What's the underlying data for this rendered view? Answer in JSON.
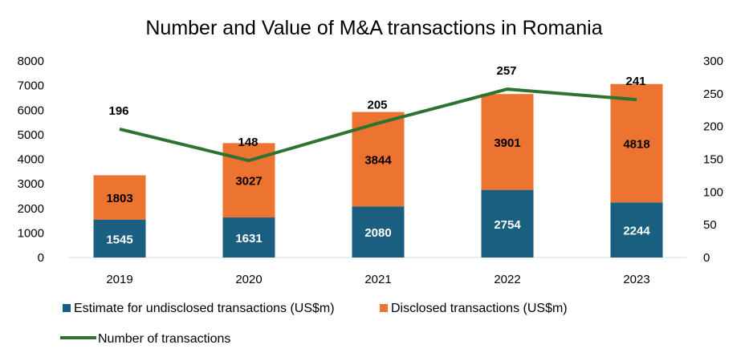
{
  "chart_data": {
    "type": "bar",
    "title": "Number and Value of M&A transactions in Romania",
    "categories": [
      "2019",
      "2020",
      "2021",
      "2022",
      "2023"
    ],
    "stacked": true,
    "series": [
      {
        "name": "Estimate for undisclosed transactions (US$m)",
        "kind": "bar",
        "axis": "left",
        "color": "#1a5e80",
        "label_color": "#ffffff",
        "values": [
          1545,
          1631,
          2080,
          2754,
          2244
        ]
      },
      {
        "name": "Disclosed transactions (US$m)",
        "kind": "bar",
        "axis": "left",
        "color": "#ed7331",
        "label_color": "#000000",
        "values": [
          1803,
          3027,
          3844,
          3901,
          4818
        ]
      },
      {
        "name": "Number of transactions",
        "kind": "line",
        "axis": "right",
        "color": "#2e7232",
        "label_color": "#000000",
        "values": [
          196,
          148,
          205,
          257,
          241
        ]
      }
    ],
    "y_left": {
      "min": 0,
      "max": 8000,
      "ticks": [
        "0",
        "1000",
        "2000",
        "3000",
        "4000",
        "5000",
        "6000",
        "7000",
        "8000"
      ]
    },
    "y_right": {
      "min": 0,
      "max": 300,
      "ticks": [
        "0",
        "50",
        "100",
        "150",
        "200",
        "250",
        "300"
      ]
    },
    "grid": false,
    "legend_position": "bottom"
  }
}
